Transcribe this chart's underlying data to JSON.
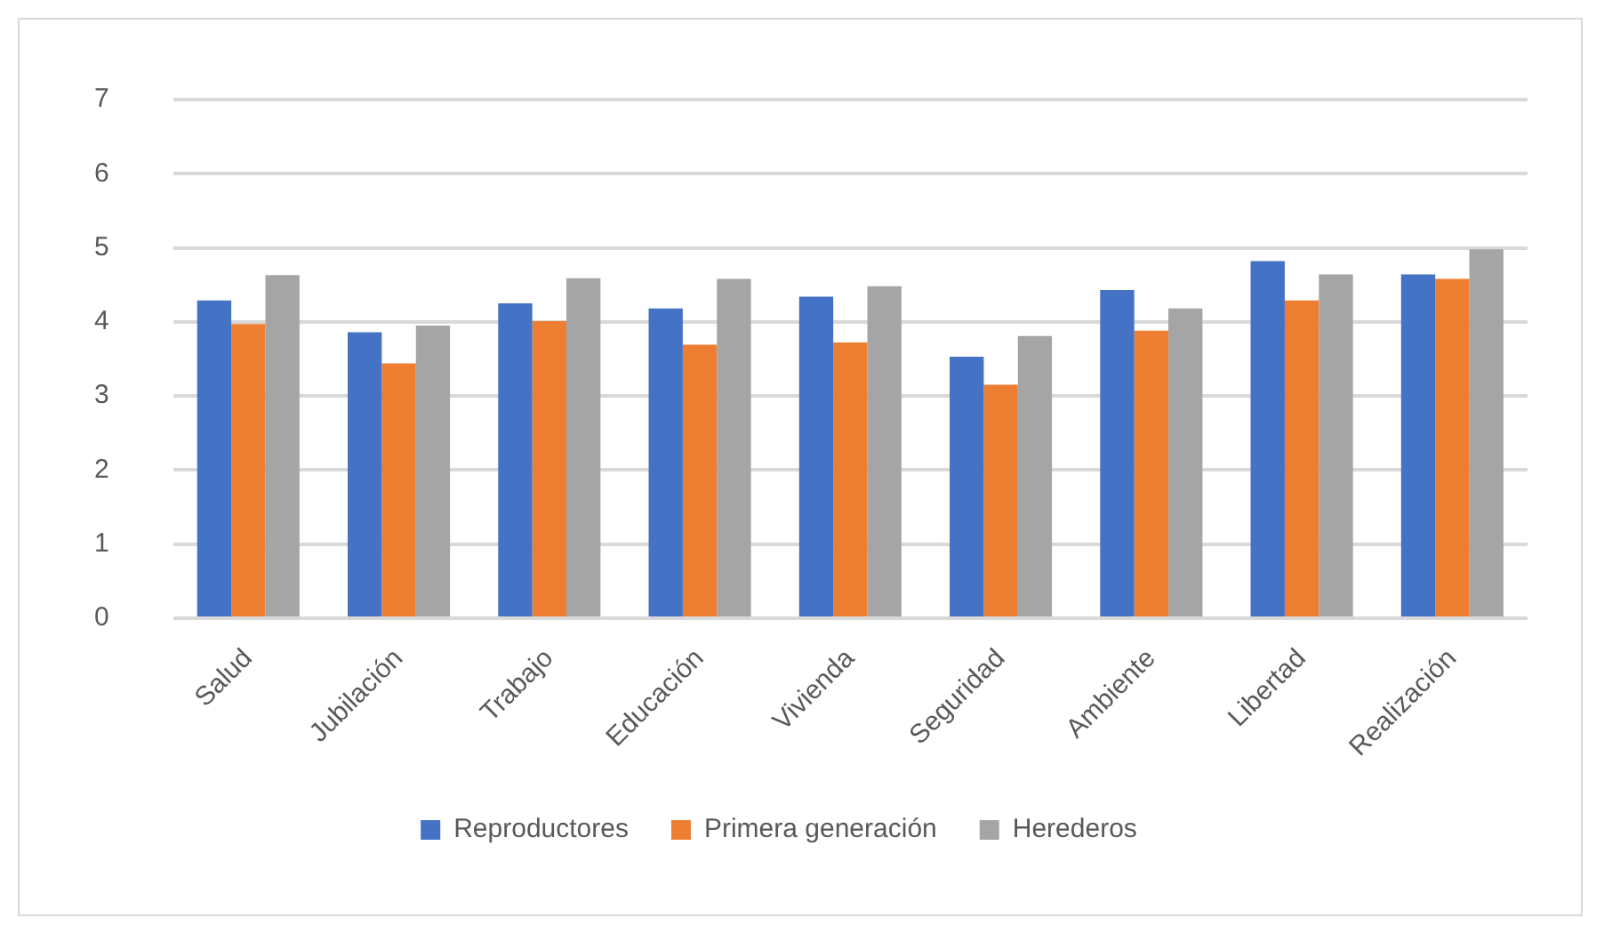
{
  "chart_data": {
    "type": "bar",
    "categories": [
      "Salud",
      "Jubilación",
      "Trabajo",
      "Educación",
      "Vivienda",
      "Seguridad",
      "Ambiente",
      "Libertad",
      "Realización"
    ],
    "series": [
      {
        "name": "Reproductores",
        "color": "#4472c4",
        "values": [
          4.29,
          3.86,
          4.25,
          4.18,
          4.34,
          3.53,
          4.43,
          4.82,
          4.64
        ]
      },
      {
        "name": "Primera generación",
        "color": "#ed7d31",
        "values": [
          3.97,
          3.44,
          4.01,
          3.69,
          3.72,
          3.15,
          3.88,
          4.29,
          4.58
        ]
      },
      {
        "name": "Herederos",
        "color": "#a5a5a5",
        "values": [
          4.63,
          3.95,
          4.59,
          4.58,
          4.48,
          3.81,
          4.18,
          4.64,
          4.98
        ]
      }
    ],
    "ylim": [
      0,
      7
    ],
    "yticks": [
      0,
      1,
      2,
      3,
      4,
      5,
      6,
      7
    ],
    "grid": "y",
    "legend": "bottom"
  }
}
